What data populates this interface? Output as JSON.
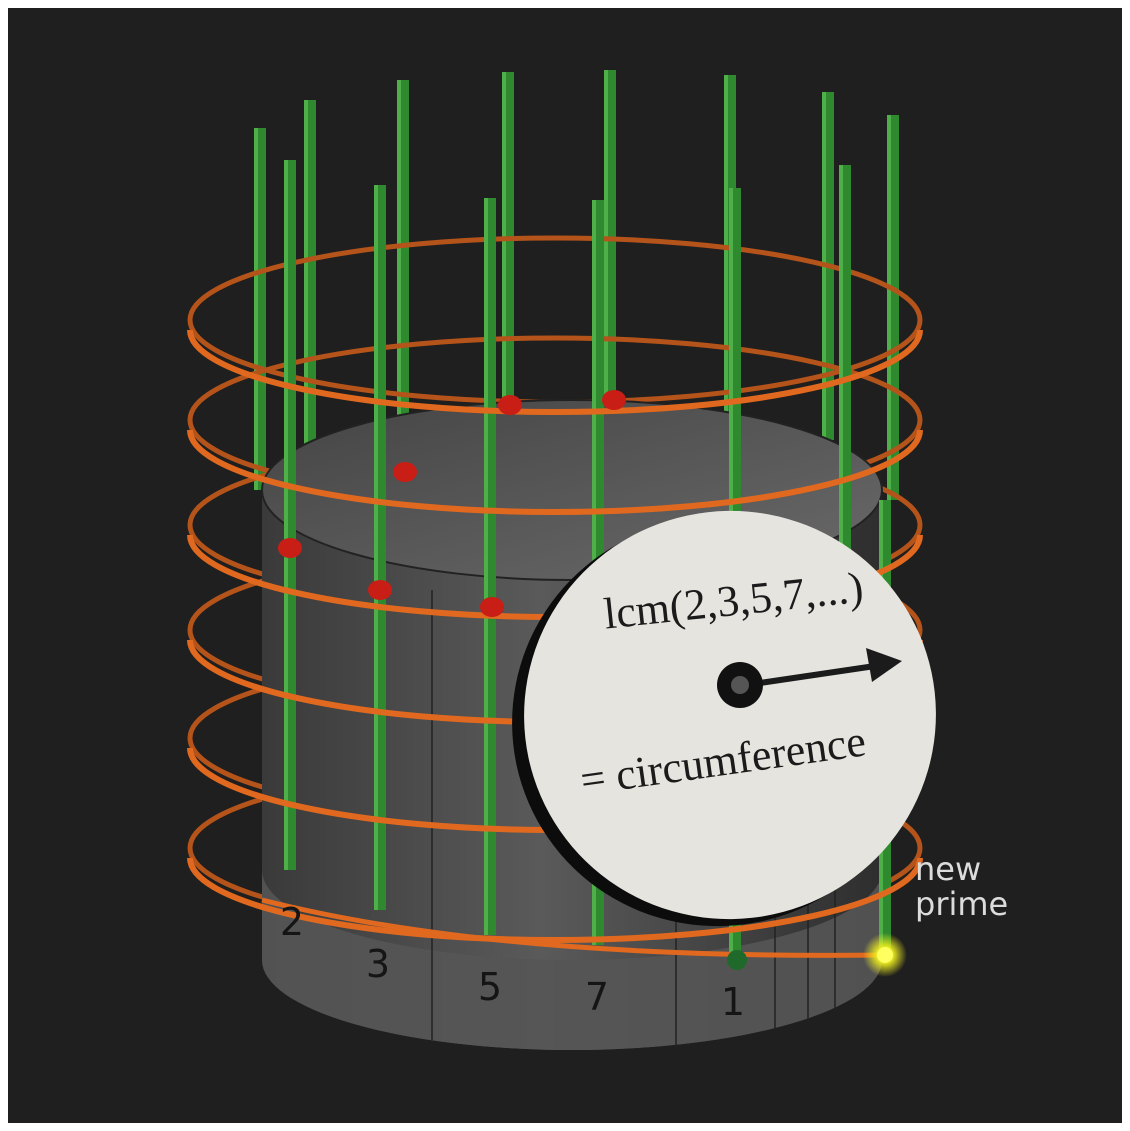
{
  "disc": {
    "formula": "lcm(2,3,5,7,...)",
    "equation": "= circumference"
  },
  "annotation": {
    "lines": [
      "new",
      "prime"
    ]
  },
  "base_labels": [
    "2",
    "3",
    "5",
    "7",
    "1"
  ]
}
